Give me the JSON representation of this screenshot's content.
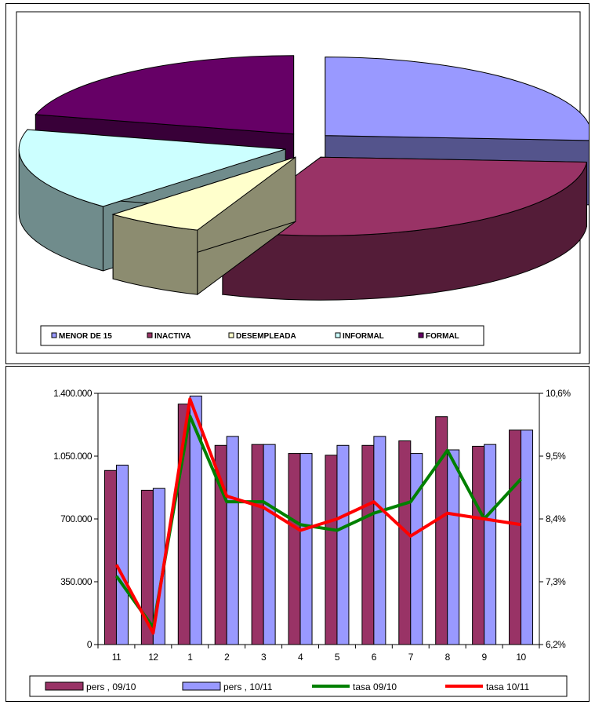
{
  "chart_data": [
    {
      "type": "pie",
      "categories": [
        "MENOR DE 15",
        "INACTIVA",
        "DESEMPLEADA",
        "INFORMAL",
        "FORMAL"
      ],
      "values": [
        26,
        30,
        6,
        17,
        21
      ],
      "colors": [
        "#9999ff",
        "#993366",
        "#ffffcc",
        "#ccffff",
        "#660066"
      ],
      "legend_position": "bottom",
      "three_d": true,
      "exploded": true
    },
    {
      "type": "bar",
      "categories": [
        "11",
        "12",
        "1",
        "2",
        "3",
        "4",
        "5",
        "6",
        "7",
        "8",
        "9",
        "10"
      ],
      "series": [
        {
          "name": "pers , 09/10",
          "kind": "bar",
          "axis": "left",
          "color": "#993366",
          "values": [
            970000,
            860000,
            1340000,
            1110000,
            1115000,
            1065000,
            1055000,
            1110000,
            1135000,
            1270000,
            1105000,
            1195000
          ]
        },
        {
          "name": "pers , 10/11",
          "kind": "bar",
          "axis": "left",
          "color": "#9999ff",
          "values": [
            1000000,
            870000,
            1385000,
            1160000,
            1115000,
            1065000,
            1110000,
            1160000,
            1065000,
            1085000,
            1115000,
            1195000
          ]
        },
        {
          "name": "tasa 09/10",
          "kind": "line",
          "axis": "right",
          "color": "#008000",
          "values": [
            7.4,
            6.5,
            10.2,
            8.7,
            8.7,
            8.3,
            8.2,
            8.5,
            8.7,
            9.6,
            8.4,
            9.1
          ]
        },
        {
          "name": "tasa 10/11",
          "kind": "line",
          "axis": "right",
          "color": "#ff0000",
          "values": [
            7.6,
            6.4,
            10.5,
            8.8,
            8.6,
            8.2,
            8.4,
            8.7,
            8.1,
            8.5,
            8.4,
            8.3
          ]
        }
      ],
      "yticks_left": [
        "0",
        "350.000",
        "700.000",
        "1.050.000",
        "1.400.000"
      ],
      "ylim_left": [
        0,
        1400000
      ],
      "yticks_right": [
        "6,2%",
        "7,3%",
        "8,4%",
        "9,5%",
        "10,6%"
      ],
      "ylim_right": [
        6.2,
        10.6
      ],
      "legend_position": "bottom",
      "grid": false
    }
  ]
}
